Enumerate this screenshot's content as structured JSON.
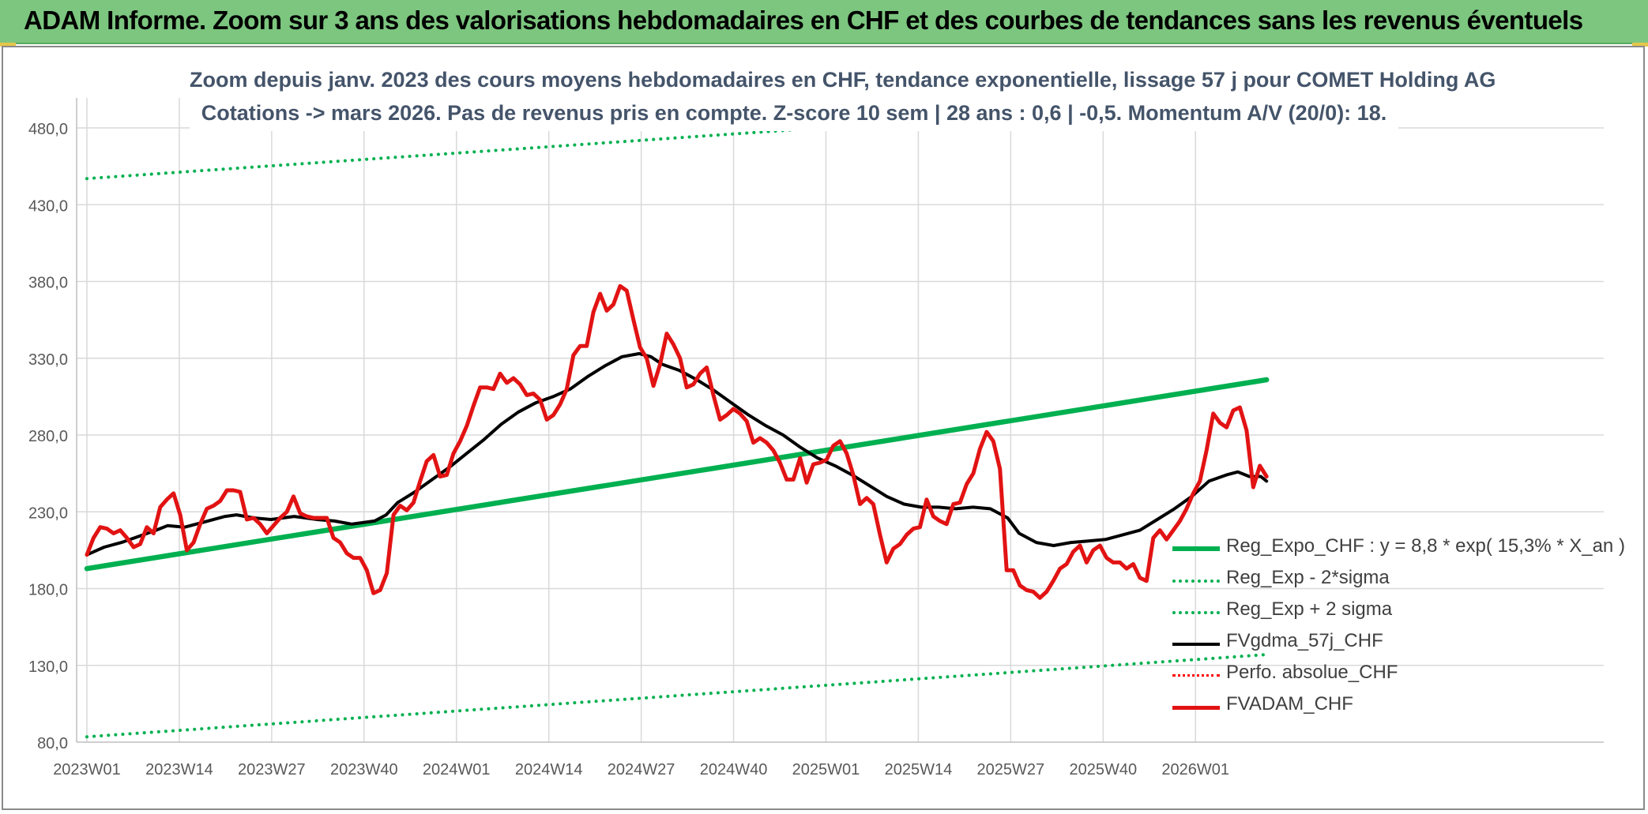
{
  "banner": {
    "title": "ADAM Informe. Zoom sur 3 ans des valorisations hebdomadaires en CHF et des courbes de tendances sans les revenus éventuels"
  },
  "chart_data": {
    "type": "line",
    "title_line1": "Zoom depuis janv. 2023 des cours moyens hebdomadaires en CHF, tendance exponentielle, lissage 57 j pour COMET Holding AG",
    "title_line2": "Cotations -> mars 2026. Pas de revenus pris en compte. Z-score 10 sem | 28 ans : 0,6 | -0,5. Momentum A/V (20/0): 18.",
    "x_tick_labels": [
      "2023W01",
      "2023W14",
      "2023W27",
      "2023W40",
      "2024W01",
      "2024W14",
      "2024W27",
      "2024W40",
      "2025W01",
      "2025W14",
      "2025W27",
      "2025W40",
      "2026W01"
    ],
    "y_tick_labels": [
      "80,0",
      "130,0",
      "180,0",
      "230,0",
      "280,0",
      "330,0",
      "380,0",
      "430,0",
      "480,0"
    ],
    "ylim": [
      80,
      480
    ],
    "x_range_weeks": [
      0,
      166
    ],
    "grid": true,
    "legend_position": "bottom-right",
    "colors": {
      "reg_exp": "#00b050",
      "fvgdma": "#000000",
      "perfo": "#ff0000",
      "fvadam": "#e21313",
      "grid": "#d9d9d9",
      "axis_text": "#595959"
    },
    "series": [
      {
        "key": "reg_exp",
        "name": "Reg_Expo_CHF : y = 8,8 * exp( 15,3% *  X_an )",
        "style": "solid-thick",
        "points": [
          [
            0,
            193
          ],
          [
            166,
            316
          ]
        ]
      },
      {
        "key": "reg_minus",
        "name": "Reg_Exp - 2*sigma",
        "style": "dotted",
        "points": [
          [
            0,
            83.5
          ],
          [
            166,
            137
          ]
        ]
      },
      {
        "key": "reg_plus",
        "name": "Reg_Exp + 2 sigma",
        "style": "dotted",
        "points": [
          [
            0,
            447
          ],
          [
            166,
            500
          ]
        ]
      },
      {
        "key": "fvgdma",
        "name": "FVgdma_57j_CHF",
        "style": "solid",
        "points": [
          [
            0,
            202
          ],
          [
            3,
            207
          ],
          [
            6,
            210
          ],
          [
            9,
            214
          ],
          [
            12,
            218
          ],
          [
            14,
            221
          ],
          [
            17,
            220
          ],
          [
            20,
            223
          ],
          [
            24,
            227
          ],
          [
            26,
            228
          ],
          [
            29,
            226
          ],
          [
            32,
            225
          ],
          [
            36,
            227
          ],
          [
            40,
            225
          ],
          [
            43,
            224
          ],
          [
            46,
            222
          ],
          [
            50,
            224
          ],
          [
            52,
            228
          ],
          [
            54,
            236
          ],
          [
            57,
            243
          ],
          [
            60,
            251
          ],
          [
            63,
            259
          ],
          [
            66,
            268
          ],
          [
            69,
            277
          ],
          [
            72,
            287
          ],
          [
            75,
            295
          ],
          [
            78,
            301
          ],
          [
            81,
            305
          ],
          [
            84,
            310
          ],
          [
            87,
            318
          ],
          [
            90,
            325
          ],
          [
            93,
            331
          ],
          [
            96,
            333
          ],
          [
            98,
            331
          ],
          [
            100,
            326
          ],
          [
            103,
            322
          ],
          [
            106,
            316
          ],
          [
            109,
            309
          ],
          [
            112,
            301
          ],
          [
            115,
            293
          ],
          [
            118,
            286
          ],
          [
            121,
            280
          ],
          [
            124,
            272
          ],
          [
            127,
            265
          ],
          [
            130,
            260
          ],
          [
            133,
            254
          ],
          [
            136,
            247
          ],
          [
            139,
            240
          ],
          [
            142,
            235
          ],
          [
            145,
            233
          ],
          [
            148,
            233
          ],
          [
            151,
            232
          ],
          [
            154,
            233
          ],
          [
            157,
            232
          ],
          [
            160,
            226
          ],
          [
            162,
            216
          ],
          [
            165,
            210
          ],
          [
            168,
            208
          ],
          [
            171,
            210
          ],
          [
            174,
            211
          ],
          [
            177,
            212
          ],
          [
            180,
            215
          ],
          [
            183,
            218
          ],
          [
            186,
            225
          ],
          [
            189,
            232
          ],
          [
            192,
            240
          ],
          [
            195,
            250
          ],
          [
            198,
            254
          ],
          [
            200,
            256
          ],
          [
            202,
            253
          ],
          [
            204,
            253
          ],
          [
            205,
            250
          ]
        ]
      },
      {
        "key": "perfo",
        "name": "Perfo. absolue_CHF",
        "style": "dotted-red",
        "points": []
      },
      {
        "key": "fvadam",
        "name": "FVADAM_CHF",
        "style": "solid-thick",
        "points": [
          [
            0,
            202
          ],
          [
            1,
            213
          ],
          [
            2,
            220
          ],
          [
            3,
            219
          ],
          [
            4,
            216
          ],
          [
            5,
            218
          ],
          [
            6,
            213
          ],
          [
            7,
            207
          ],
          [
            8,
            209
          ],
          [
            9,
            220
          ],
          [
            10,
            216
          ],
          [
            11,
            233
          ],
          [
            12,
            238
          ],
          [
            13,
            242
          ],
          [
            14,
            228
          ],
          [
            15,
            205
          ],
          [
            16,
            210
          ],
          [
            17,
            222
          ],
          [
            18,
            232
          ],
          [
            19,
            234
          ],
          [
            20,
            237
          ],
          [
            21,
            244
          ],
          [
            22,
            244
          ],
          [
            23,
            243
          ],
          [
            24,
            225
          ],
          [
            25,
            226
          ],
          [
            26,
            222
          ],
          [
            27,
            216
          ],
          [
            28,
            221
          ],
          [
            29,
            226
          ],
          [
            30,
            230
          ],
          [
            31,
            240
          ],
          [
            32,
            229
          ],
          [
            33,
            227
          ],
          [
            34,
            226
          ],
          [
            35,
            226
          ],
          [
            36,
            226
          ],
          [
            37,
            213
          ],
          [
            38,
            210
          ],
          [
            39,
            203
          ],
          [
            40,
            200
          ],
          [
            41,
            200
          ],
          [
            42,
            192
          ],
          [
            43,
            177
          ],
          [
            44,
            179
          ],
          [
            45,
            190
          ],
          [
            46,
            228
          ],
          [
            47,
            234
          ],
          [
            48,
            231
          ],
          [
            49,
            236
          ],
          [
            50,
            250
          ],
          [
            51,
            263
          ],
          [
            52,
            267
          ],
          [
            53,
            253
          ],
          [
            54,
            254
          ],
          [
            55,
            268
          ],
          [
            56,
            276
          ],
          [
            57,
            286
          ],
          [
            58,
            299
          ],
          [
            59,
            311
          ],
          [
            60,
            311
          ],
          [
            61,
            310
          ],
          [
            62,
            320
          ],
          [
            63,
            314
          ],
          [
            64,
            317
          ],
          [
            65,
            313
          ],
          [
            66,
            306
          ],
          [
            67,
            307
          ],
          [
            68,
            303
          ],
          [
            69,
            290
          ],
          [
            70,
            293
          ],
          [
            71,
            300
          ],
          [
            72,
            310
          ],
          [
            73,
            332
          ],
          [
            74,
            338
          ],
          [
            75,
            338
          ],
          [
            76,
            360
          ],
          [
            77,
            372
          ],
          [
            78,
            361
          ],
          [
            79,
            365
          ],
          [
            80,
            377
          ],
          [
            81,
            374
          ],
          [
            82,
            355
          ],
          [
            83,
            337
          ],
          [
            84,
            330
          ],
          [
            85,
            312
          ],
          [
            86,
            326
          ],
          [
            87,
            346
          ],
          [
            88,
            339
          ],
          [
            89,
            330
          ],
          [
            90,
            311
          ],
          [
            91,
            313
          ],
          [
            92,
            320
          ],
          [
            93,
            324
          ],
          [
            94,
            306
          ],
          [
            95,
            290
          ],
          [
            96,
            293
          ],
          [
            97,
            297
          ],
          [
            98,
            294
          ],
          [
            99,
            289
          ],
          [
            100,
            275
          ],
          [
            101,
            278
          ],
          [
            102,
            275
          ],
          [
            103,
            270
          ],
          [
            104,
            262
          ],
          [
            105,
            251
          ],
          [
            106,
            251
          ],
          [
            107,
            265
          ],
          [
            108,
            249
          ],
          [
            109,
            261
          ],
          [
            110,
            262
          ],
          [
            111,
            264
          ],
          [
            112,
            273
          ],
          [
            113,
            276
          ],
          [
            114,
            268
          ],
          [
            115,
            254
          ],
          [
            116,
            235
          ],
          [
            117,
            239
          ],
          [
            118,
            235
          ],
          [
            119,
            215
          ],
          [
            120,
            197
          ],
          [
            121,
            206
          ],
          [
            122,
            209
          ],
          [
            123,
            215
          ],
          [
            124,
            219
          ],
          [
            125,
            220
          ],
          [
            126,
            238
          ],
          [
            127,
            227
          ],
          [
            128,
            224
          ],
          [
            129,
            222
          ],
          [
            130,
            235
          ],
          [
            131,
            236
          ],
          [
            132,
            248
          ],
          [
            133,
            255
          ],
          [
            134,
            271
          ],
          [
            135,
            282
          ],
          [
            136,
            276
          ],
          [
            137,
            258
          ],
          [
            138,
            192
          ],
          [
            139,
            192
          ],
          [
            140,
            182
          ],
          [
            141,
            179
          ],
          [
            142,
            178
          ],
          [
            143,
            174
          ],
          [
            144,
            178
          ],
          [
            145,
            185
          ],
          [
            146,
            193
          ],
          [
            147,
            196
          ],
          [
            148,
            204
          ],
          [
            149,
            208
          ],
          [
            150,
            197
          ],
          [
            151,
            205
          ],
          [
            152,
            208
          ],
          [
            153,
            200
          ],
          [
            154,
            197
          ],
          [
            155,
            197
          ],
          [
            156,
            193
          ],
          [
            157,
            196
          ],
          [
            158,
            187
          ],
          [
            159,
            185
          ],
          [
            160,
            213
          ],
          [
            161,
            218
          ],
          [
            162,
            212
          ],
          [
            163,
            218
          ],
          [
            164,
            224
          ],
          [
            165,
            232
          ],
          [
            166,
            242
          ],
          [
            167,
            250
          ],
          [
            168,
            270
          ],
          [
            169,
            294
          ],
          [
            170,
            288
          ],
          [
            171,
            285
          ],
          [
            172,
            296
          ],
          [
            173,
            298
          ],
          [
            174,
            283
          ],
          [
            175,
            246
          ],
          [
            176,
            260
          ],
          [
            177,
            253
          ]
        ]
      }
    ]
  }
}
